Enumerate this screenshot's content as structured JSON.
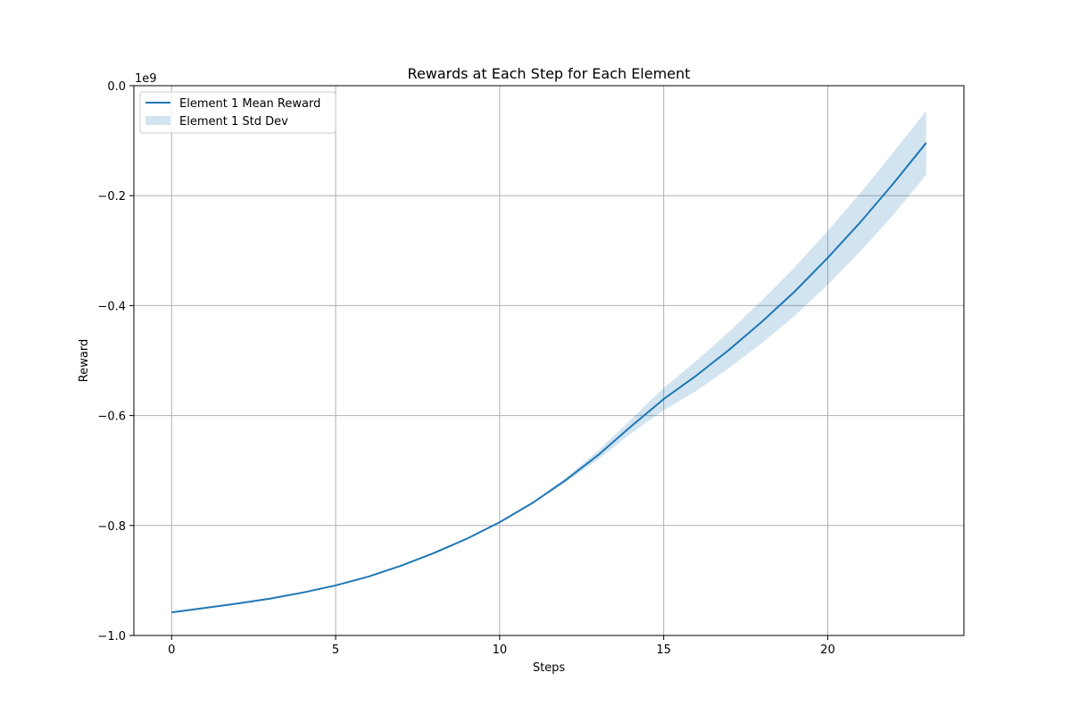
{
  "chart_data": {
    "type": "line",
    "title": "Rewards at Each Step for Each Element",
    "xlabel": "Steps",
    "ylabel": "Reward",
    "y_offset_label": "1e9",
    "y_scale": 1000000000,
    "xlim": [
      -1.15,
      24.15
    ],
    "ylim": [
      -1.0,
      0.0
    ],
    "grid": true,
    "legend_position": "top-left",
    "x_ticks": [
      0,
      5,
      10,
      15,
      20
    ],
    "x_tick_labels": [
      "0",
      "5",
      "10",
      "15",
      "20"
    ],
    "y_ticks": [
      0.0,
      -0.2,
      -0.4,
      -0.6,
      -0.8,
      -1.0
    ],
    "y_tick_labels": [
      "0.0",
      "−0.2",
      "−0.4",
      "−0.6",
      "−0.8",
      "−1.0"
    ],
    "colors": {
      "line": "#1f77b4",
      "band": "#1f77b4",
      "axis": "#000000",
      "grid": "#b0b0b0"
    },
    "x": [
      0,
      1,
      2,
      3,
      4,
      5,
      6,
      7,
      8,
      9,
      10,
      11,
      12,
      13,
      14,
      15,
      16,
      17,
      18,
      19,
      20,
      21,
      22,
      23
    ],
    "series": [
      {
        "name": "Element 1 Mean Reward",
        "band_name": "Element 1 Std Dev",
        "values": [
          -0.958,
          -0.95,
          -0.942,
          -0.933,
          -0.922,
          -0.909,
          -0.893,
          -0.873,
          -0.85,
          -0.824,
          -0.794,
          -0.759,
          -0.718,
          -0.672,
          -0.62,
          -0.57,
          -0.527,
          -0.48,
          -0.429,
          -0.374,
          -0.313,
          -0.248,
          -0.178,
          -0.104
        ],
        "lower": [
          -0.958,
          -0.95,
          -0.942,
          -0.933,
          -0.922,
          -0.909,
          -0.893,
          -0.873,
          -0.85,
          -0.824,
          -0.794,
          -0.76,
          -0.722,
          -0.68,
          -0.633,
          -0.59,
          -0.555,
          -0.513,
          -0.468,
          -0.418,
          -0.362,
          -0.301,
          -0.235,
          -0.162
        ],
        "upper": [
          -0.958,
          -0.95,
          -0.942,
          -0.933,
          -0.922,
          -0.909,
          -0.893,
          -0.873,
          -0.85,
          -0.824,
          -0.794,
          -0.758,
          -0.714,
          -0.664,
          -0.607,
          -0.55,
          -0.5,
          -0.447,
          -0.39,
          -0.33,
          -0.264,
          -0.195,
          -0.121,
          -0.046
        ]
      }
    ]
  }
}
